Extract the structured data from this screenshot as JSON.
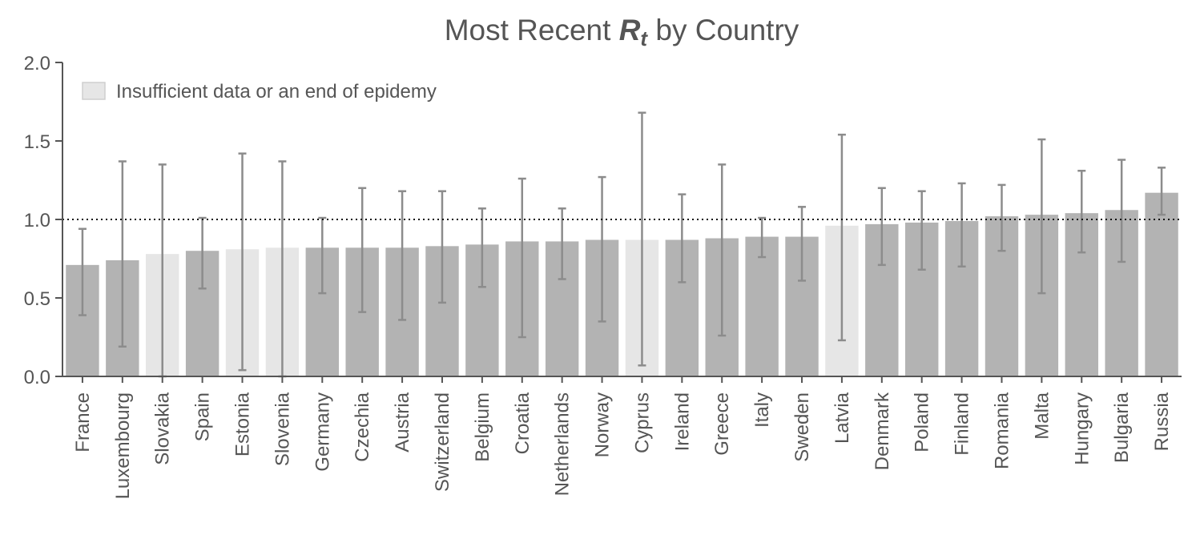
{
  "chart_data": {
    "type": "bar",
    "title": {
      "prefix": "Most Recent ",
      "symbol": "R",
      "subscript": "t",
      "suffix": " by Country"
    },
    "xlabel": "",
    "ylabel": "",
    "ylim": [
      0,
      2.0
    ],
    "yticks": [
      "0.0",
      "0.5",
      "1.0",
      "1.5",
      "2.0"
    ],
    "reference_line": 1.0,
    "grid": false,
    "legend": {
      "placement": "top-left",
      "label": "Insufficient data or an end of epidemy"
    },
    "colors": {
      "normal": "#b3b3b3",
      "insufficient": "#e6e6e6",
      "errorbar": "#8c8c8c",
      "axis": "#555555",
      "text": "#555555"
    },
    "categories": [
      "France",
      "Luxembourg",
      "Slovakia",
      "Spain",
      "Estonia",
      "Slovenia",
      "Germany",
      "Czechia",
      "Austria",
      "Switzerland",
      "Belgium",
      "Croatia",
      "Netherlands",
      "Norway",
      "Cyprus",
      "Ireland",
      "Greece",
      "Italy",
      "Sweden",
      "Latvia",
      "Denmark",
      "Poland",
      "Finland",
      "Romania",
      "Malta",
      "Hungary",
      "Bulgaria",
      "Russia"
    ],
    "values": [
      0.71,
      0.74,
      0.78,
      0.8,
      0.81,
      0.82,
      0.82,
      0.82,
      0.82,
      0.83,
      0.84,
      0.86,
      0.86,
      0.87,
      0.87,
      0.87,
      0.88,
      0.89,
      0.89,
      0.96,
      0.97,
      0.98,
      0.99,
      1.02,
      1.03,
      1.04,
      1.06,
      1.17
    ],
    "lower": [
      0.39,
      0.19,
      0.0,
      0.56,
      0.04,
      0.0,
      0.53,
      0.41,
      0.36,
      0.47,
      0.57,
      0.25,
      0.62,
      0.35,
      0.07,
      0.6,
      0.26,
      0.76,
      0.61,
      0.23,
      0.71,
      0.68,
      0.7,
      0.8,
      0.53,
      0.79,
      0.73,
      1.03
    ],
    "upper": [
      0.94,
      1.37,
      1.35,
      1.01,
      1.42,
      1.37,
      1.01,
      1.2,
      1.18,
      1.18,
      1.07,
      1.26,
      1.07,
      1.27,
      1.68,
      1.16,
      1.35,
      1.01,
      1.08,
      1.54,
      1.2,
      1.18,
      1.23,
      1.22,
      1.51,
      1.31,
      1.38,
      1.33
    ],
    "insufficient": [
      false,
      false,
      true,
      false,
      true,
      true,
      false,
      false,
      false,
      false,
      false,
      false,
      false,
      false,
      true,
      false,
      false,
      false,
      false,
      true,
      false,
      false,
      false,
      false,
      false,
      false,
      false,
      false
    ]
  }
}
